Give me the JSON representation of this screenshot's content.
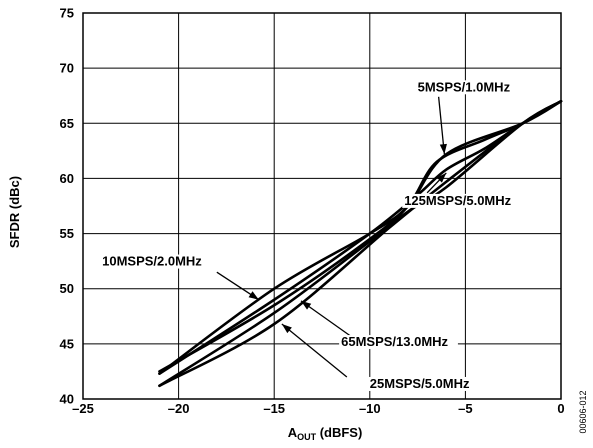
{
  "chart_data": {
    "type": "line",
    "xlabel_main": "A",
    "xlabel_sub": "OUT",
    "xlabel_rest": " (dBFS)",
    "ylabel": "SFDR (dBc)",
    "xlim": [
      -25,
      0
    ],
    "ylim": [
      40,
      75
    ],
    "xticks": [
      "–25",
      "–20",
      "–15",
      "–10",
      "–5",
      "0"
    ],
    "yticks": [
      "40",
      "45",
      "50",
      "55",
      "60",
      "65",
      "70",
      "75"
    ],
    "grid": true,
    "figure_code": "00606-012",
    "series": [
      {
        "name": "5MSPS/1.0MHz",
        "x": [
          -21,
          -15,
          -10,
          -8,
          -6.5,
          -4,
          -2,
          0
        ],
        "y": [
          42.5,
          48.5,
          54.5,
          57.5,
          61.5,
          63.5,
          65,
          67
        ]
      },
      {
        "name": "125MSPS/5.0MHz",
        "x": [
          -21,
          -15,
          -10,
          -7.5,
          -6,
          -4,
          -2,
          0
        ],
        "y": [
          42.3,
          49,
          55,
          58.5,
          60.8,
          62.7,
          65,
          67
        ]
      },
      {
        "name": "10MSPS/2.0MHz",
        "x": [
          -21,
          -15,
          -10,
          -8,
          -6,
          -2,
          0
        ],
        "y": [
          42.3,
          50,
          55,
          57.5,
          62.2,
          65,
          67
        ]
      },
      {
        "name": "65MSPS/13.0MHz",
        "x": [
          -21,
          -15,
          -10,
          -8,
          -6,
          -2,
          0
        ],
        "y": [
          41.2,
          47.8,
          54.3,
          57,
          59.2,
          65,
          67
        ]
      },
      {
        "name": "25MSPS/5.0MHz",
        "x": [
          -21,
          -15,
          -9,
          -6,
          -2,
          0
        ],
        "y": [
          41.2,
          46.8,
          55.5,
          59.7,
          65,
          67
        ]
      }
    ],
    "annotations": [
      {
        "label": "5MSPS/1.0MHz",
        "text_at": [
          -7.5,
          67.9
        ],
        "arrow_to": [
          -6.1,
          62.2
        ],
        "arrow_from": [
          -6.4,
          67.4
        ]
      },
      {
        "label": "125MSPS/5.0MHz",
        "text_at": [
          -8.2,
          57.6
        ],
        "arrow_to": [
          -6.0,
          60.5
        ],
        "arrow_from": [
          -7.0,
          58.7
        ]
      },
      {
        "label": "10MSPS/2.0MHz",
        "text_at": [
          -24.0,
          52.1
        ],
        "arrow_to": [
          -15.8,
          49.0
        ],
        "arrow_from": [
          -18.0,
          51.5
        ]
      },
      {
        "label": "65MSPS/13.0MHz",
        "text_at": [
          -11.5,
          44.8
        ],
        "arrow_to": [
          -13.6,
          48.9
        ],
        "arrow_from": [
          -11.0,
          45.7
        ]
      },
      {
        "label": "25MSPS/5.0MHz",
        "text_at": [
          -10.0,
          41.0
        ],
        "arrow_to": [
          -14.6,
          46.8
        ],
        "arrow_from": [
          -11.2,
          42.0
        ]
      }
    ]
  }
}
